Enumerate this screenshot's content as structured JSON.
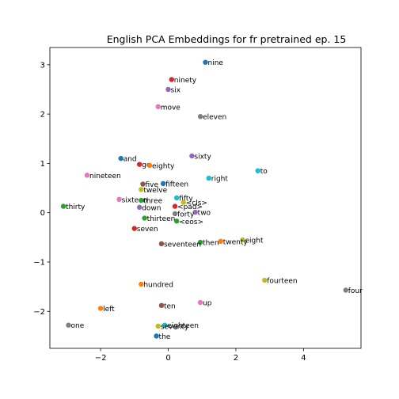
{
  "chart_data": {
    "type": "scatter",
    "title": "English PCA Embeddings for fr pretrained ep. 15",
    "xlabel": "",
    "ylabel": "",
    "xlim": [
      -3.5,
      5.7
    ],
    "ylim": [
      -2.75,
      3.35
    ],
    "xticks": [
      -2,
      0,
      2,
      4
    ],
    "yticks": [
      -2,
      -1,
      0,
      1,
      2,
      3
    ],
    "grid": false,
    "points": [
      {
        "label": "nine",
        "x": 1.1,
        "y": 3.05,
        "color": "#1f77b4"
      },
      {
        "label": "ninety",
        "x": 0.1,
        "y": 2.7,
        "color": "#d62728"
      },
      {
        "label": "six",
        "x": 0.0,
        "y": 2.5,
        "color": "#9467bd"
      },
      {
        "label": "move",
        "x": -0.3,
        "y": 2.15,
        "color": "#e377c2"
      },
      {
        "label": "eleven",
        "x": 0.95,
        "y": 1.95,
        "color": "#7f7f7f"
      },
      {
        "label": "sixty",
        "x": 0.7,
        "y": 1.15,
        "color": "#9467bd"
      },
      {
        "label": "and",
        "x": -1.4,
        "y": 1.1,
        "color": "#1f77b4"
      },
      {
        "label": "go",
        "x": -0.85,
        "y": 0.98,
        "color": "#d62728"
      },
      {
        "label": "eighty",
        "x": -0.55,
        "y": 0.96,
        "color": "#ff7f0e"
      },
      {
        "label": "nineteen",
        "x": -2.4,
        "y": 0.76,
        "color": "#e377c2"
      },
      {
        "label": "to",
        "x": 2.65,
        "y": 0.85,
        "color": "#17becf"
      },
      {
        "label": "right",
        "x": 1.2,
        "y": 0.7,
        "color": "#17becf"
      },
      {
        "label": "five",
        "x": -0.75,
        "y": 0.58,
        "color": "#8c564b"
      },
      {
        "label": "fifteen",
        "x": -0.15,
        "y": 0.59,
        "color": "#1f77b4"
      },
      {
        "label": "twelve",
        "x": -0.8,
        "y": 0.47,
        "color": "#bcbd22"
      },
      {
        "label": "fifty",
        "x": 0.25,
        "y": 0.3,
        "color": "#17becf"
      },
      {
        "label": "sixteen",
        "x": -1.45,
        "y": 0.27,
        "color": "#e377c2"
      },
      {
        "label": "three",
        "x": -0.8,
        "y": 0.25,
        "color": "#2ca02c"
      },
      {
        "label": "<cls>",
        "x": 0.45,
        "y": 0.21,
        "color": "#bcbd22"
      },
      {
        "label": "<pad>",
        "x": 0.2,
        "y": 0.13,
        "color": "#d62728"
      },
      {
        "label": "thirty",
        "x": -3.1,
        "y": 0.13,
        "color": "#2ca02c"
      },
      {
        "label": "down",
        "x": -0.85,
        "y": 0.11,
        "color": "#9467bd"
      },
      {
        "label": "two",
        "x": 0.8,
        "y": 0.01,
        "color": "#9467bd"
      },
      {
        "label": "forty",
        "x": 0.2,
        "y": -0.02,
        "color": "#7f7f7f"
      },
      {
        "label": "thirteen",
        "x": -0.7,
        "y": -0.11,
        "color": "#2ca02c"
      },
      {
        "label": "<eos>",
        "x": 0.25,
        "y": -0.17,
        "color": "#2ca02c"
      },
      {
        "label": "seven",
        "x": -1.0,
        "y": -0.32,
        "color": "#d62728"
      },
      {
        "label": "eight",
        "x": 2.2,
        "y": -0.55,
        "color": "#bcbd22"
      },
      {
        "label": "twenty",
        "x": 1.55,
        "y": -0.58,
        "color": "#ff7f0e"
      },
      {
        "label": "then",
        "x": 0.95,
        "y": -0.6,
        "color": "#2ca02c"
      },
      {
        "label": "seventeen",
        "x": -0.2,
        "y": -0.63,
        "color": "#8c564b"
      },
      {
        "label": "fourteen",
        "x": 2.85,
        "y": -1.37,
        "color": "#bcbd22"
      },
      {
        "label": "hundred",
        "x": -0.8,
        "y": -1.45,
        "color": "#ff7f0e"
      },
      {
        "label": "four",
        "x": 5.25,
        "y": -1.57,
        "color": "#7f7f7f"
      },
      {
        "label": "up",
        "x": 0.95,
        "y": -1.82,
        "color": "#e377c2"
      },
      {
        "label": "ten",
        "x": -0.2,
        "y": -1.88,
        "color": "#8c564b"
      },
      {
        "label": "left",
        "x": -2.0,
        "y": -1.94,
        "color": "#ff7f0e"
      },
      {
        "label": "one",
        "x": -2.95,
        "y": -2.28,
        "color": "#7f7f7f"
      },
      {
        "label": "eighteen",
        "x": -0.1,
        "y": -2.28,
        "color": "#17becf"
      },
      {
        "label": "seventy",
        "x": -0.3,
        "y": -2.3,
        "color": "#bcbd22"
      },
      {
        "label": "the",
        "x": -0.35,
        "y": -2.5,
        "color": "#1f77b4"
      }
    ]
  }
}
